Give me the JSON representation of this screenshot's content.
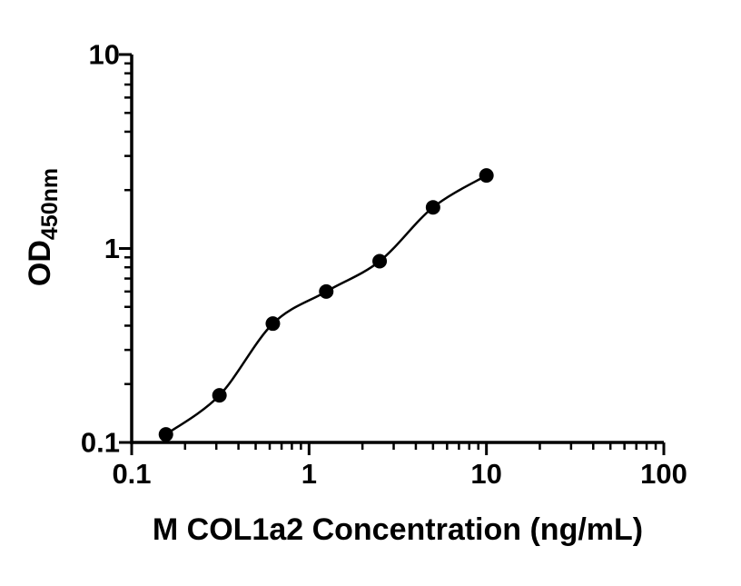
{
  "chart_data": {
    "type": "scatter",
    "title": "",
    "xlabel": "M COL1a2 Concentration (ng/mL)",
    "ylabel": "OD",
    "ylabel_subscript": "450nm",
    "x_scale": "log",
    "y_scale": "log",
    "xlim": [
      0.1,
      100
    ],
    "ylim": [
      0.1,
      10
    ],
    "x_ticks": [
      {
        "value": 0.1,
        "label": "0.1"
      },
      {
        "value": 1,
        "label": "1"
      },
      {
        "value": 10,
        "label": "10"
      },
      {
        "value": 100,
        "label": "100"
      }
    ],
    "y_ticks": [
      {
        "value": 0.1,
        "label": "0.1"
      },
      {
        "value": 1,
        "label": "1"
      },
      {
        "value": 10,
        "label": "10"
      }
    ],
    "series": [
      {
        "name": "standard-curve",
        "marker": "filled-circle",
        "line": "smooth-fit",
        "color": "#000000",
        "points": [
          {
            "x": 0.156,
            "y": 0.11
          },
          {
            "x": 0.3125,
            "y": 0.175
          },
          {
            "x": 0.625,
            "y": 0.41
          },
          {
            "x": 1.25,
            "y": 0.6
          },
          {
            "x": 2.5,
            "y": 0.86
          },
          {
            "x": 5,
            "y": 1.63
          },
          {
            "x": 10,
            "y": 2.38
          }
        ]
      }
    ],
    "grid": false,
    "legend": false,
    "colors": {
      "axis": "#000000",
      "marker": "#000000",
      "curve": "#000000",
      "background": "#ffffff"
    }
  }
}
